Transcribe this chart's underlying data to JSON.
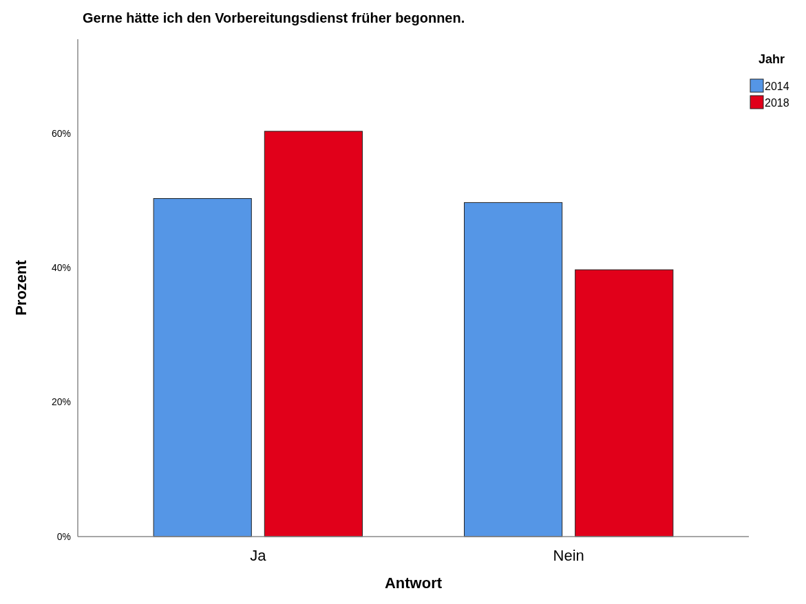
{
  "chart_data": {
    "type": "bar",
    "title": "Gerne hätte ich den Vorbereitungsdienst früher begonnen.",
    "xlabel": "Antwort",
    "ylabel": "Prozent",
    "legend_title": "Jahr",
    "categories": [
      "Ja",
      "Nein"
    ],
    "series": [
      {
        "name": "2014",
        "color": "#5596e6",
        "values": [
          50.3,
          49.7
        ]
      },
      {
        "name": "2018",
        "color": "#e1001a",
        "values": [
          60.3,
          39.7
        ]
      }
    ],
    "ylim": [
      0,
      74
    ],
    "yticks": [
      {
        "value": 0,
        "label": "0%"
      },
      {
        "value": 20,
        "label": "20%"
      },
      {
        "value": 40,
        "label": "40%"
      },
      {
        "value": 60,
        "label": "60%"
      }
    ],
    "grid": false,
    "legend": "top right"
  }
}
